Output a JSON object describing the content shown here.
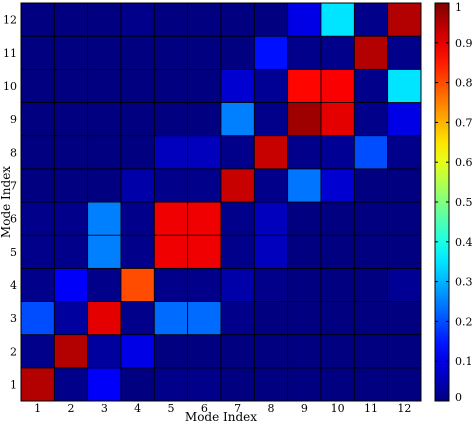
{
  "chart_data": {
    "type": "heatmap",
    "title": "",
    "xlabel": "Mode Index",
    "ylabel": "Mode Index",
    "x_categories": [
      "1",
      "2",
      "3",
      "4",
      "5",
      "6",
      "7",
      "8",
      "9",
      "10",
      "11",
      "12"
    ],
    "y_categories": [
      "1",
      "2",
      "3",
      "4",
      "5",
      "6",
      "7",
      "8",
      "9",
      "10",
      "11",
      "12"
    ],
    "row_order": "bottom-to-top",
    "values": [
      [
        0.95,
        0.01,
        0.12,
        0.0,
        0.01,
        0.01,
        0.0,
        0.0,
        0.0,
        0.0,
        0.0,
        0.0
      ],
      [
        0.01,
        0.95,
        0.03,
        0.1,
        0.0,
        0.0,
        0.0,
        0.0,
        0.0,
        0.0,
        0.0,
        0.0
      ],
      [
        0.2,
        0.03,
        0.9,
        0.01,
        0.23,
        0.23,
        0.01,
        0.0,
        0.0,
        0.0,
        0.0,
        0.0
      ],
      [
        0.01,
        0.12,
        0.01,
        0.8,
        0.01,
        0.01,
        0.04,
        0.01,
        0.0,
        0.0,
        0.0,
        0.02
      ],
      [
        0.01,
        0.01,
        0.25,
        0.01,
        0.89,
        0.89,
        0.01,
        0.06,
        0.0,
        0.0,
        0.0,
        0.0
      ],
      [
        0.01,
        0.01,
        0.25,
        0.01,
        0.89,
        0.89,
        0.01,
        0.06,
        0.0,
        0.0,
        0.0,
        0.0
      ],
      [
        0.0,
        0.0,
        0.0,
        0.04,
        0.01,
        0.01,
        0.93,
        0.01,
        0.24,
        0.08,
        0.0,
        0.0
      ],
      [
        0.0,
        0.0,
        0.0,
        0.0,
        0.06,
        0.06,
        0.01,
        0.93,
        0.01,
        0.02,
        0.2,
        0.01
      ],
      [
        0.0,
        0.0,
        0.0,
        0.0,
        0.0,
        0.0,
        0.25,
        0.01,
        0.97,
        0.9,
        0.01,
        0.1
      ],
      [
        0.0,
        0.0,
        0.0,
        0.0,
        0.0,
        0.0,
        0.08,
        0.02,
        0.87,
        0.88,
        0.01,
        0.35
      ],
      [
        0.0,
        0.0,
        0.0,
        0.0,
        0.0,
        0.0,
        0.0,
        0.14,
        0.01,
        0.01,
        0.95,
        0.01
      ],
      [
        0.0,
        0.0,
        0.0,
        0.01,
        0.0,
        0.0,
        0.0,
        0.0,
        0.1,
        0.35,
        0.01,
        0.95
      ]
    ],
    "colorbar": {
      "colormap": "jet",
      "range": [
        0,
        1
      ],
      "ticks": [
        "0",
        "0.1",
        "0.2",
        "0.3",
        "0.4",
        "0.5",
        "0.6",
        "0.7",
        "0.8",
        "0.9",
        "1"
      ]
    },
    "grid": true
  }
}
